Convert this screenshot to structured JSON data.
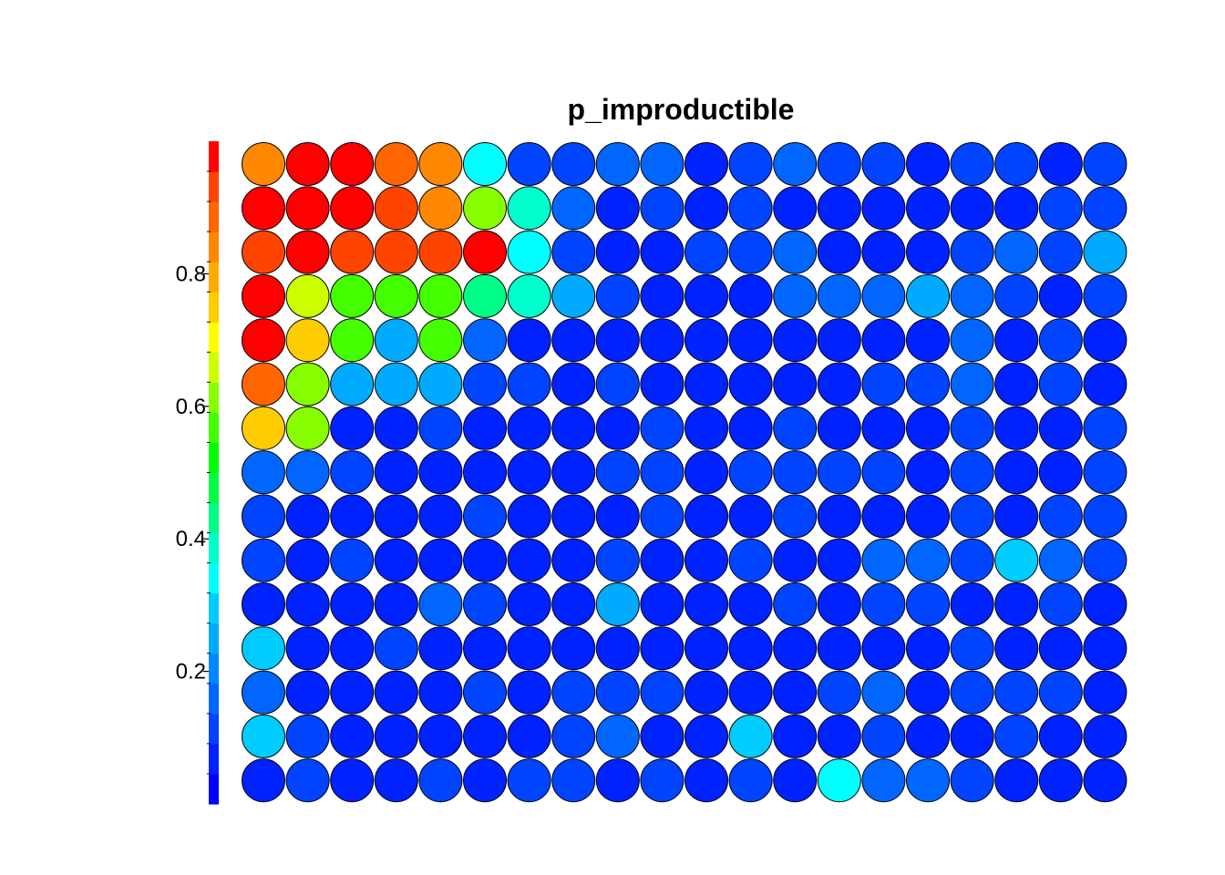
{
  "chart_data": {
    "type": "heatmap",
    "subtype": "som-hexagon-grid",
    "title": "p_improductible",
    "columns": 20,
    "rows": 15,
    "colorbar": {
      "placement": "left",
      "range": [
        0,
        1
      ],
      "ticks": [
        0.2,
        0.4,
        0.6,
        0.8
      ],
      "tick_labels": [
        "0.2",
        "0.4",
        "0.6",
        "0.8"
      ],
      "palette": [
        "#0000ff",
        "#0022ff",
        "#0044ff",
        "#0066ff",
        "#0088ff",
        "#00aaff",
        "#00ccff",
        "#00ffff",
        "#00ffcc",
        "#00ff88",
        "#00ff44",
        "#00ff00",
        "#44ff00",
        "#88ff00",
        "#ccff00",
        "#ffff00",
        "#ffcc00",
        "#ffaa00",
        "#ff8800",
        "#ff6600",
        "#ff4400",
        "#ff0000"
      ]
    },
    "grid": [
      [
        0.82,
        0.98,
        0.98,
        0.87,
        0.82,
        0.35,
        0.12,
        0.12,
        0.17,
        0.18,
        0.05,
        0.12,
        0.18,
        0.12,
        0.12,
        0.05,
        0.12,
        0.13,
        0.05,
        0.12
      ],
      [
        0.98,
        0.98,
        0.98,
        0.93,
        0.82,
        0.63,
        0.4,
        0.18,
        0.07,
        0.12,
        0.07,
        0.12,
        0.07,
        0.05,
        0.05,
        0.05,
        0.07,
        0.05,
        0.12,
        0.12
      ],
      [
        0.93,
        0.98,
        0.93,
        0.93,
        0.93,
        0.98,
        0.35,
        0.12,
        0.05,
        0.05,
        0.12,
        0.12,
        0.17,
        0.05,
        0.05,
        0.05,
        0.12,
        0.18,
        0.12,
        0.25
      ],
      [
        0.98,
        0.67,
        0.55,
        0.55,
        0.55,
        0.45,
        0.4,
        0.25,
        0.12,
        0.05,
        0.05,
        0.05,
        0.18,
        0.18,
        0.18,
        0.25,
        0.18,
        0.12,
        0.05,
        0.12
      ],
      [
        0.98,
        0.77,
        0.55,
        0.25,
        0.55,
        0.18,
        0.05,
        0.05,
        0.07,
        0.05,
        0.05,
        0.05,
        0.07,
        0.05,
        0.07,
        0.05,
        0.17,
        0.05,
        0.12,
        0.07
      ],
      [
        0.87,
        0.6,
        0.25,
        0.25,
        0.25,
        0.12,
        0.12,
        0.05,
        0.12,
        0.05,
        0.07,
        0.05,
        0.07,
        0.05,
        0.12,
        0.12,
        0.17,
        0.05,
        0.12,
        0.05
      ],
      [
        0.77,
        0.6,
        0.05,
        0.05,
        0.12,
        0.05,
        0.05,
        0.05,
        0.07,
        0.12,
        0.05,
        0.07,
        0.12,
        0.05,
        0.07,
        0.05,
        0.12,
        0.05,
        0.07,
        0.12
      ],
      [
        0.17,
        0.17,
        0.12,
        0.05,
        0.05,
        0.05,
        0.05,
        0.07,
        0.12,
        0.12,
        0.05,
        0.12,
        0.12,
        0.12,
        0.12,
        0.05,
        0.12,
        0.05,
        0.05,
        0.12
      ],
      [
        0.12,
        0.05,
        0.05,
        0.05,
        0.05,
        0.12,
        0.05,
        0.05,
        0.07,
        0.12,
        0.05,
        0.07,
        0.12,
        0.05,
        0.05,
        0.07,
        0.12,
        0.05,
        0.12,
        0.12
      ],
      [
        0.12,
        0.05,
        0.12,
        0.05,
        0.05,
        0.05,
        0.05,
        0.05,
        0.12,
        0.05,
        0.05,
        0.12,
        0.07,
        0.05,
        0.18,
        0.18,
        0.12,
        0.3,
        0.18,
        0.12
      ],
      [
        0.05,
        0.05,
        0.05,
        0.05,
        0.17,
        0.12,
        0.05,
        0.05,
        0.25,
        0.05,
        0.05,
        0.05,
        0.12,
        0.05,
        0.12,
        0.12,
        0.05,
        0.05,
        0.12,
        0.05
      ],
      [
        0.3,
        0.05,
        0.05,
        0.12,
        0.05,
        0.05,
        0.05,
        0.05,
        0.05,
        0.05,
        0.05,
        0.05,
        0.07,
        0.05,
        0.05,
        0.05,
        0.12,
        0.05,
        0.05,
        0.05
      ],
      [
        0.17,
        0.05,
        0.05,
        0.05,
        0.05,
        0.12,
        0.05,
        0.12,
        0.12,
        0.12,
        0.05,
        0.05,
        0.05,
        0.12,
        0.17,
        0.05,
        0.12,
        0.12,
        0.12,
        0.05
      ],
      [
        0.3,
        0.12,
        0.05,
        0.05,
        0.05,
        0.05,
        0.05,
        0.12,
        0.17,
        0.05,
        0.05,
        0.3,
        0.05,
        0.05,
        0.12,
        0.05,
        0.05,
        0.12,
        0.05,
        0.05
      ],
      [
        0.05,
        0.12,
        0.05,
        0.05,
        0.12,
        0.05,
        0.12,
        0.12,
        0.05,
        0.12,
        0.05,
        0.12,
        0.05,
        0.35,
        0.17,
        0.17,
        0.12,
        0.05,
        0.05,
        0.05
      ]
    ]
  }
}
